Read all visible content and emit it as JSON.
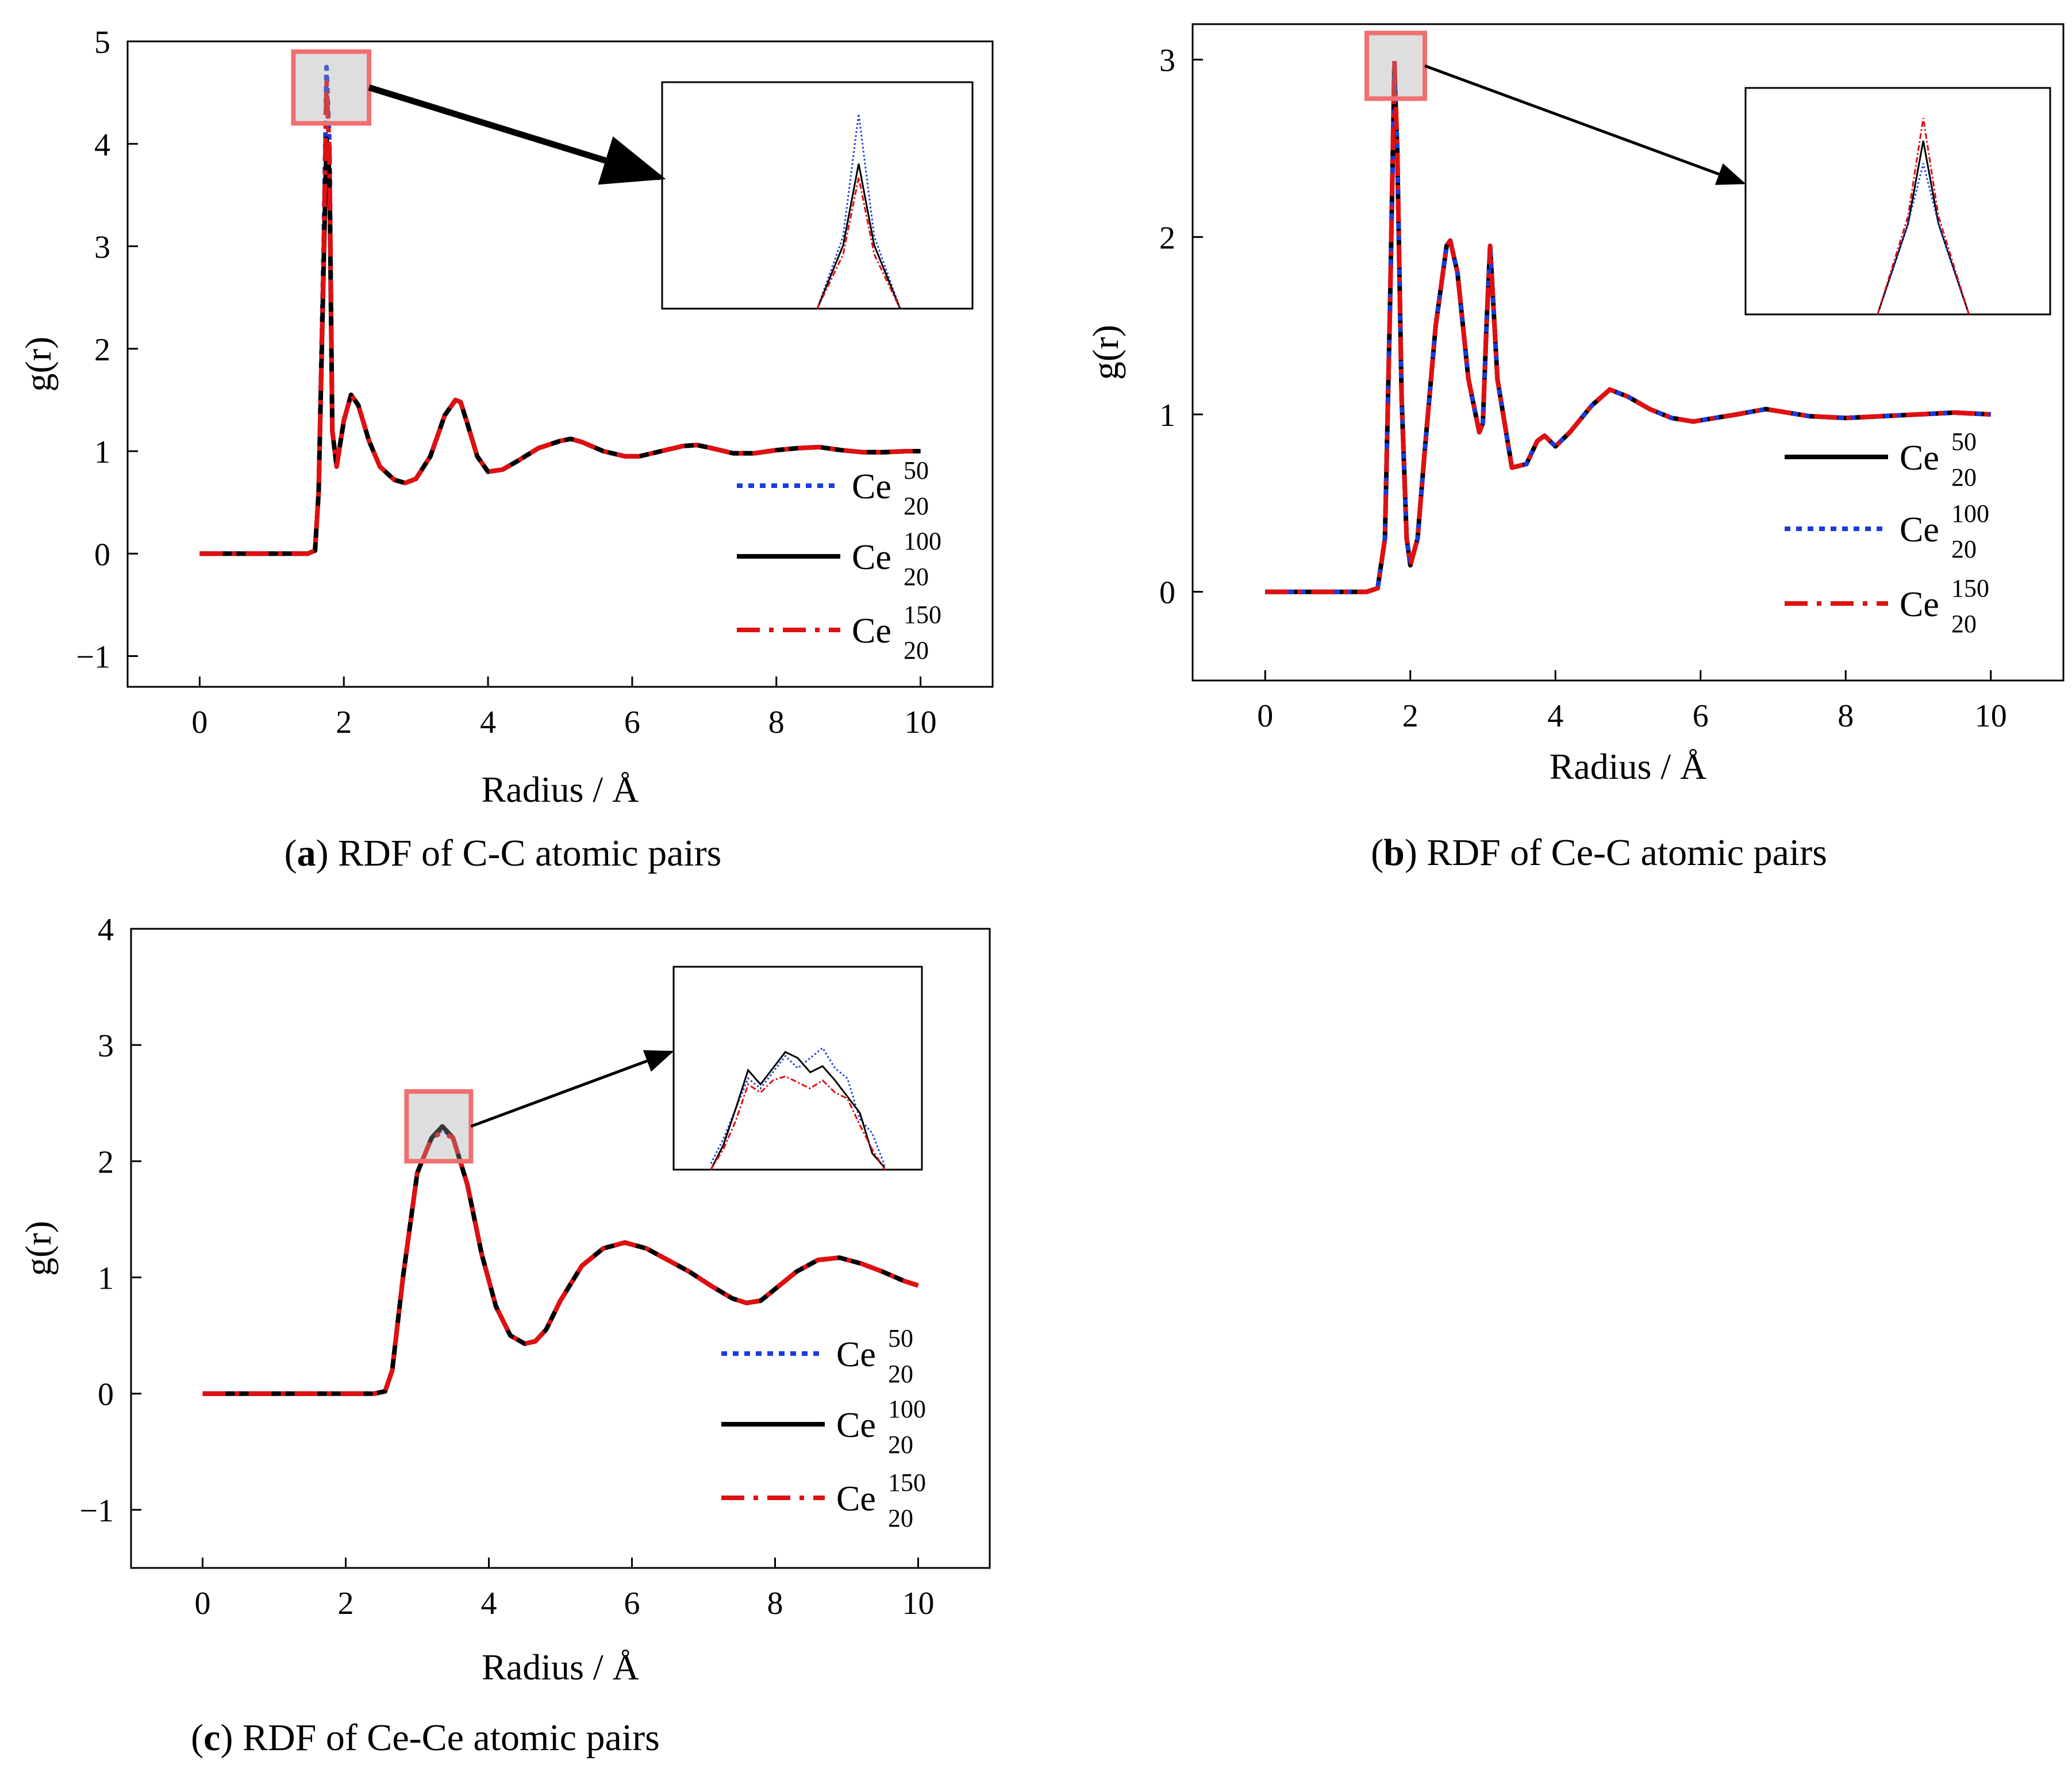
{
  "chart_data": [
    {
      "id": "a",
      "type": "line",
      "caption_letter": "a",
      "caption_text": "RDF of C-C atomic pairs",
      "xlabel": "Radius / Å",
      "ylabel": "g(r)",
      "xlim": [
        -1,
        11
      ],
      "ylim": [
        -1.3,
        5
      ],
      "xticks": [
        "0",
        "2",
        "4",
        "6",
        "8",
        "10"
      ],
      "xtick_values": [
        0,
        2,
        4,
        6,
        8,
        10
      ],
      "yticks": [
        "−1",
        "0",
        "1",
        "2",
        "3",
        "4",
        "5"
      ],
      "ytick_values": [
        -1,
        0,
        1,
        2,
        3,
        4,
        5
      ],
      "x": [
        0,
        0.4,
        0.8,
        1.2,
        1.5,
        1.6,
        1.65,
        1.72,
        1.76,
        1.8,
        1.84,
        1.9,
        2.0,
        2.1,
        2.2,
        2.35,
        2.5,
        2.7,
        2.85,
        3.0,
        3.2,
        3.4,
        3.55,
        3.62,
        3.7,
        3.85,
        4.0,
        4.2,
        4.4,
        4.7,
        5.0,
        5.15,
        5.3,
        5.6,
        5.9,
        6.1,
        6.4,
        6.7,
        6.9,
        7.1,
        7.4,
        7.7,
        8.0,
        8.3,
        8.6,
        8.9,
        9.2,
        9.5,
        9.8,
        10.0
      ],
      "series": [
        {
          "name": "Ce50_20",
          "base": "Ce",
          "sub": "20",
          "sup": "50",
          "style": "dotted",
          "color": "#1a3be0",
          "values": [
            0,
            0,
            0,
            0,
            0,
            0.03,
            0.6,
            3.0,
            4.75,
            4.0,
            1.2,
            0.85,
            1.3,
            1.55,
            1.45,
            1.1,
            0.85,
            0.72,
            0.69,
            0.73,
            0.95,
            1.35,
            1.5,
            1.48,
            1.3,
            0.95,
            0.8,
            0.82,
            0.9,
            1.03,
            1.1,
            1.12,
            1.09,
            1.0,
            0.95,
            0.95,
            1.0,
            1.05,
            1.06,
            1.03,
            0.98,
            0.98,
            1.01,
            1.03,
            1.04,
            1.01,
            0.99,
            0.99,
            1.0,
            1.0
          ]
        },
        {
          "name": "Ce100_20",
          "base": "Ce",
          "sub": "20",
          "sup": "100",
          "style": "solid",
          "color": "#000000",
          "values": [
            0,
            0,
            0,
            0,
            0,
            0.03,
            0.6,
            2.8,
            4.05,
            3.7,
            1.2,
            0.85,
            1.3,
            1.55,
            1.45,
            1.1,
            0.85,
            0.72,
            0.69,
            0.73,
            0.95,
            1.35,
            1.5,
            1.48,
            1.3,
            0.95,
            0.8,
            0.82,
            0.9,
            1.03,
            1.1,
            1.12,
            1.09,
            1.0,
            0.95,
            0.95,
            1.0,
            1.05,
            1.06,
            1.03,
            0.98,
            0.98,
            1.01,
            1.03,
            1.04,
            1.01,
            0.99,
            0.99,
            1.0,
            1.0
          ]
        },
        {
          "name": "Ce150_20",
          "base": "Ce",
          "sub": "20",
          "sup": "150",
          "style": "dashdot",
          "color": "#e01010",
          "values": [
            0,
            0,
            0,
            0,
            0,
            0.03,
            0.6,
            2.9,
            4.6,
            3.9,
            1.2,
            0.85,
            1.3,
            1.55,
            1.45,
            1.1,
            0.85,
            0.72,
            0.69,
            0.73,
            0.95,
            1.35,
            1.5,
            1.48,
            1.3,
            0.95,
            0.8,
            0.82,
            0.9,
            1.03,
            1.1,
            1.12,
            1.09,
            1.0,
            0.95,
            0.95,
            1.0,
            1.05,
            1.06,
            1.03,
            0.98,
            0.98,
            1.01,
            1.03,
            1.04,
            1.01,
            0.99,
            0.99,
            1.0,
            1.0
          ]
        }
      ],
      "legend_order": [
        0,
        1,
        2
      ],
      "legend_position": "right",
      "zoom_box": {
        "x": [
          1.3,
          2.35
        ],
        "y": [
          4.2,
          4.9
        ]
      },
      "inset": {
        "xlim": [
          1.4,
          2.0
        ],
        "ylim": [
          0,
          5
        ],
        "x": [
          1.7,
          1.75,
          1.78,
          1.81,
          1.86
        ],
        "series": [
          [
            0,
            1.6,
            4.3,
            1.6,
            0
          ],
          [
            0,
            1.4,
            3.2,
            1.4,
            0
          ],
          [
            0,
            1.2,
            2.9,
            1.2,
            0
          ]
        ]
      }
    },
    {
      "id": "b",
      "type": "line",
      "caption_letter": "b",
      "caption_text": "RDF of Ce-C atomic pairs",
      "xlabel": "Radius / Å",
      "ylabel": "g(r)",
      "xlim": [
        -1,
        11
      ],
      "ylim": [
        -0.5,
        3.2
      ],
      "xticks": [
        "0",
        "2",
        "4",
        "6",
        "8",
        "10"
      ],
      "xtick_values": [
        0,
        2,
        4,
        6,
        8,
        10
      ],
      "yticks": [
        "0",
        "1",
        "2",
        "3"
      ],
      "ytick_values": [
        0,
        1,
        2,
        3
      ],
      "x": [
        0,
        0.5,
        1.0,
        1.4,
        1.55,
        1.65,
        1.72,
        1.78,
        1.82,
        1.88,
        1.95,
        2.0,
        2.1,
        2.2,
        2.35,
        2.5,
        2.55,
        2.65,
        2.8,
        2.95,
        3.0,
        3.05,
        3.1,
        3.2,
        3.4,
        3.6,
        3.75,
        3.85,
        4.0,
        4.2,
        4.5,
        4.75,
        5.0,
        5.3,
        5.6,
        5.9,
        6.2,
        6.5,
        6.9,
        7.2,
        7.5,
        8.0,
        8.5,
        9.0,
        9.5,
        10.0
      ],
      "series": [
        {
          "name": "Ce50_20",
          "base": "Ce",
          "sub": "20",
          "sup": "50",
          "style": "solid",
          "color": "#000000",
          "values": [
            0,
            0,
            0,
            0,
            0.02,
            0.3,
            1.6,
            2.95,
            2.5,
            1.1,
            0.3,
            0.15,
            0.3,
            0.8,
            1.5,
            1.95,
            1.98,
            1.8,
            1.2,
            0.9,
            0.95,
            1.5,
            1.95,
            1.2,
            0.7,
            0.72,
            0.85,
            0.88,
            0.82,
            0.9,
            1.05,
            1.14,
            1.1,
            1.03,
            0.98,
            0.96,
            0.98,
            1.0,
            1.03,
            1.01,
            0.99,
            0.98,
            0.99,
            1.0,
            1.01,
            1.0
          ]
        },
        {
          "name": "Ce100_20",
          "base": "Ce",
          "sub": "20",
          "sup": "100",
          "style": "dotted",
          "color": "#1a3be0",
          "values": [
            0,
            0,
            0,
            0,
            0.02,
            0.3,
            1.6,
            2.9,
            2.5,
            1.1,
            0.3,
            0.15,
            0.3,
            0.8,
            1.5,
            1.95,
            1.98,
            1.8,
            1.2,
            0.9,
            0.95,
            1.5,
            1.95,
            1.2,
            0.7,
            0.72,
            0.85,
            0.88,
            0.82,
            0.9,
            1.05,
            1.14,
            1.1,
            1.03,
            0.98,
            0.96,
            0.98,
            1.0,
            1.03,
            1.01,
            0.99,
            0.98,
            0.99,
            1.0,
            1.01,
            1.0
          ]
        },
        {
          "name": "Ce150_20",
          "base": "Ce",
          "sub": "20",
          "sup": "150",
          "style": "dashdot",
          "color": "#e01010",
          "values": [
            0,
            0,
            0,
            0,
            0.02,
            0.3,
            1.6,
            3.0,
            2.5,
            1.1,
            0.3,
            0.15,
            0.3,
            0.8,
            1.5,
            1.95,
            1.98,
            1.8,
            1.2,
            0.9,
            0.95,
            1.5,
            1.95,
            1.2,
            0.7,
            0.72,
            0.85,
            0.88,
            0.82,
            0.9,
            1.05,
            1.14,
            1.1,
            1.03,
            0.98,
            0.96,
            0.98,
            1.0,
            1.03,
            1.01,
            0.99,
            0.98,
            0.99,
            1.0,
            1.01,
            1.0
          ]
        }
      ],
      "legend_order": [
        0,
        1,
        2
      ],
      "legend_position": "right",
      "zoom_box": {
        "x": [
          1.4,
          2.2
        ],
        "y": [
          2.78,
          3.15
        ]
      },
      "inset": {
        "xlim": [
          1.4,
          2.0
        ],
        "ylim": [
          0,
          3
        ],
        "x": [
          1.66,
          1.72,
          1.75,
          1.78,
          1.84
        ],
        "series": [
          [
            0,
            1.2,
            2.3,
            1.2,
            0
          ],
          [
            0,
            1.2,
            2.0,
            1.2,
            0
          ],
          [
            0,
            1.3,
            2.6,
            1.3,
            0
          ]
        ]
      }
    },
    {
      "id": "c",
      "type": "line",
      "caption_letter": "c",
      "caption_text": "RDF of Ce-Ce atomic pairs",
      "xlabel": "Radius / Å",
      "ylabel": "g(r)",
      "xlim": [
        -1,
        11
      ],
      "ylim": [
        -1.5,
        4
      ],
      "xticks": [
        "0",
        "2",
        "4",
        "6",
        "8",
        "10"
      ],
      "xtick_values": [
        0,
        2,
        4,
        6,
        8,
        10
      ],
      "yticks": [
        "−1",
        "0",
        "1",
        "2",
        "3",
        "4"
      ],
      "ytick_values": [
        -1,
        0,
        1,
        2,
        3,
        4
      ],
      "x": [
        0,
        0.5,
        1.0,
        1.5,
        2.0,
        2.4,
        2.55,
        2.65,
        2.8,
        3.0,
        3.2,
        3.35,
        3.5,
        3.7,
        3.9,
        4.1,
        4.3,
        4.5,
        4.65,
        4.8,
        5.0,
        5.3,
        5.6,
        5.9,
        6.2,
        6.5,
        6.8,
        7.1,
        7.4,
        7.6,
        7.8,
        8.0,
        8.3,
        8.6,
        8.9,
        9.2,
        9.5,
        9.8,
        10.0
      ],
      "series": [
        {
          "name": "Ce50_20",
          "base": "Ce",
          "sub": "20",
          "sup": "50",
          "style": "dotted",
          "color": "#1a3be0",
          "values": [
            0,
            0,
            0,
            0,
            0,
            0,
            0.02,
            0.2,
            1.0,
            1.9,
            2.2,
            2.28,
            2.2,
            1.8,
            1.2,
            0.75,
            0.5,
            0.43,
            0.45,
            0.55,
            0.8,
            1.1,
            1.25,
            1.3,
            1.25,
            1.15,
            1.05,
            0.93,
            0.82,
            0.78,
            0.8,
            0.9,
            1.05,
            1.15,
            1.17,
            1.12,
            1.05,
            0.97,
            0.93
          ]
        },
        {
          "name": "Ce100_20",
          "base": "Ce",
          "sub": "20",
          "sup": "100",
          "style": "solid",
          "color": "#000000",
          "values": [
            0,
            0,
            0,
            0,
            0,
            0,
            0.02,
            0.2,
            1.0,
            1.9,
            2.2,
            2.3,
            2.2,
            1.8,
            1.2,
            0.75,
            0.5,
            0.43,
            0.45,
            0.55,
            0.8,
            1.1,
            1.25,
            1.3,
            1.25,
            1.15,
            1.05,
            0.93,
            0.82,
            0.78,
            0.8,
            0.9,
            1.05,
            1.15,
            1.17,
            1.12,
            1.05,
            0.97,
            0.93
          ]
        },
        {
          "name": "Ce150_20",
          "base": "Ce",
          "sub": "20",
          "sup": "150",
          "style": "dashdot",
          "color": "#e01010",
          "values": [
            0,
            0,
            0,
            0,
            0,
            0,
            0.02,
            0.2,
            1.0,
            1.9,
            2.2,
            2.25,
            2.2,
            1.8,
            1.2,
            0.75,
            0.5,
            0.43,
            0.45,
            0.55,
            0.8,
            1.1,
            1.25,
            1.3,
            1.25,
            1.15,
            1.05,
            0.93,
            0.82,
            0.78,
            0.8,
            0.9,
            1.05,
            1.15,
            1.17,
            1.12,
            1.05,
            0.97,
            0.93
          ]
        }
      ],
      "legend_order": [
        0,
        1,
        2
      ],
      "legend_position": "right",
      "zoom_box": {
        "x": [
          2.85,
          3.75
        ],
        "y": [
          2.0,
          2.6
        ]
      },
      "inset": {
        "xlim": [
          0,
          10
        ],
        "ylim": [
          0,
          10
        ],
        "x": [
          1.5,
          2.0,
          2.5,
          3.0,
          3.5,
          4.0,
          4.5,
          5.0,
          5.5,
          6.0,
          6.5,
          7.0,
          7.5,
          8.0,
          8.5
        ],
        "series": [
          [
            0.3,
            1.5,
            3.0,
            4.5,
            4.0,
            4.8,
            5.6,
            5.0,
            5.5,
            6.0,
            5.0,
            4.5,
            2.5,
            1.8,
            0.2
          ],
          [
            0.0,
            1.2,
            3.0,
            4.9,
            4.2,
            5.0,
            5.8,
            5.5,
            4.8,
            5.1,
            4.4,
            3.6,
            2.8,
            0.8,
            0.1
          ],
          [
            0.0,
            1.0,
            2.4,
            4.2,
            3.8,
            4.4,
            4.6,
            4.3,
            4.0,
            4.4,
            3.8,
            3.5,
            2.2,
            1.0,
            0.0
          ]
        ]
      }
    }
  ]
}
